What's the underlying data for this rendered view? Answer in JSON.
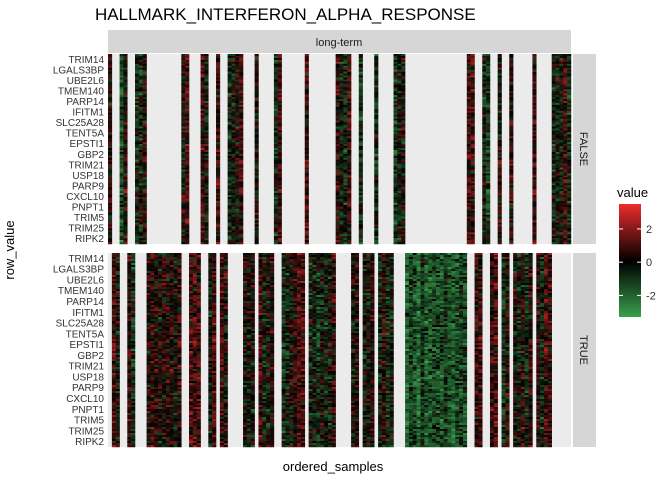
{
  "chart_data": {
    "type": "heatmap",
    "title": "HALLMARK_INTERFERON_ALPHA_RESPONSE",
    "xlabel": "ordered_samples",
    "ylabel": "row_value",
    "facet_column_label": "long-term",
    "facet_rows": [
      "FALSE",
      "TRUE"
    ],
    "row_tick_labels": [
      "TRIM14",
      "LGALS3BP",
      "UBE2L6",
      "TMEM140",
      "PARP14",
      "IFITM1",
      "SLC25A28",
      "TENT5A",
      "EPSTI1",
      "GBP2",
      "TRIM21",
      "USP18",
      "PARP9",
      "CXCL10",
      "PNPT1",
      "TRIM5",
      "TRIM25",
      "RIPK2"
    ],
    "legend": {
      "title": "value",
      "ticks": [
        2,
        0,
        -2
      ],
      "limits": [
        -3.3,
        3.5
      ],
      "colors": {
        "low": "#3aa14e",
        "mid": "#000000",
        "high": "#ee2c2c"
      }
    },
    "n_samples": 120,
    "n_genes": 97,
    "color_scale": "low-green / mid-black / high-red gradient; samples not in a panel are blank"
  }
}
